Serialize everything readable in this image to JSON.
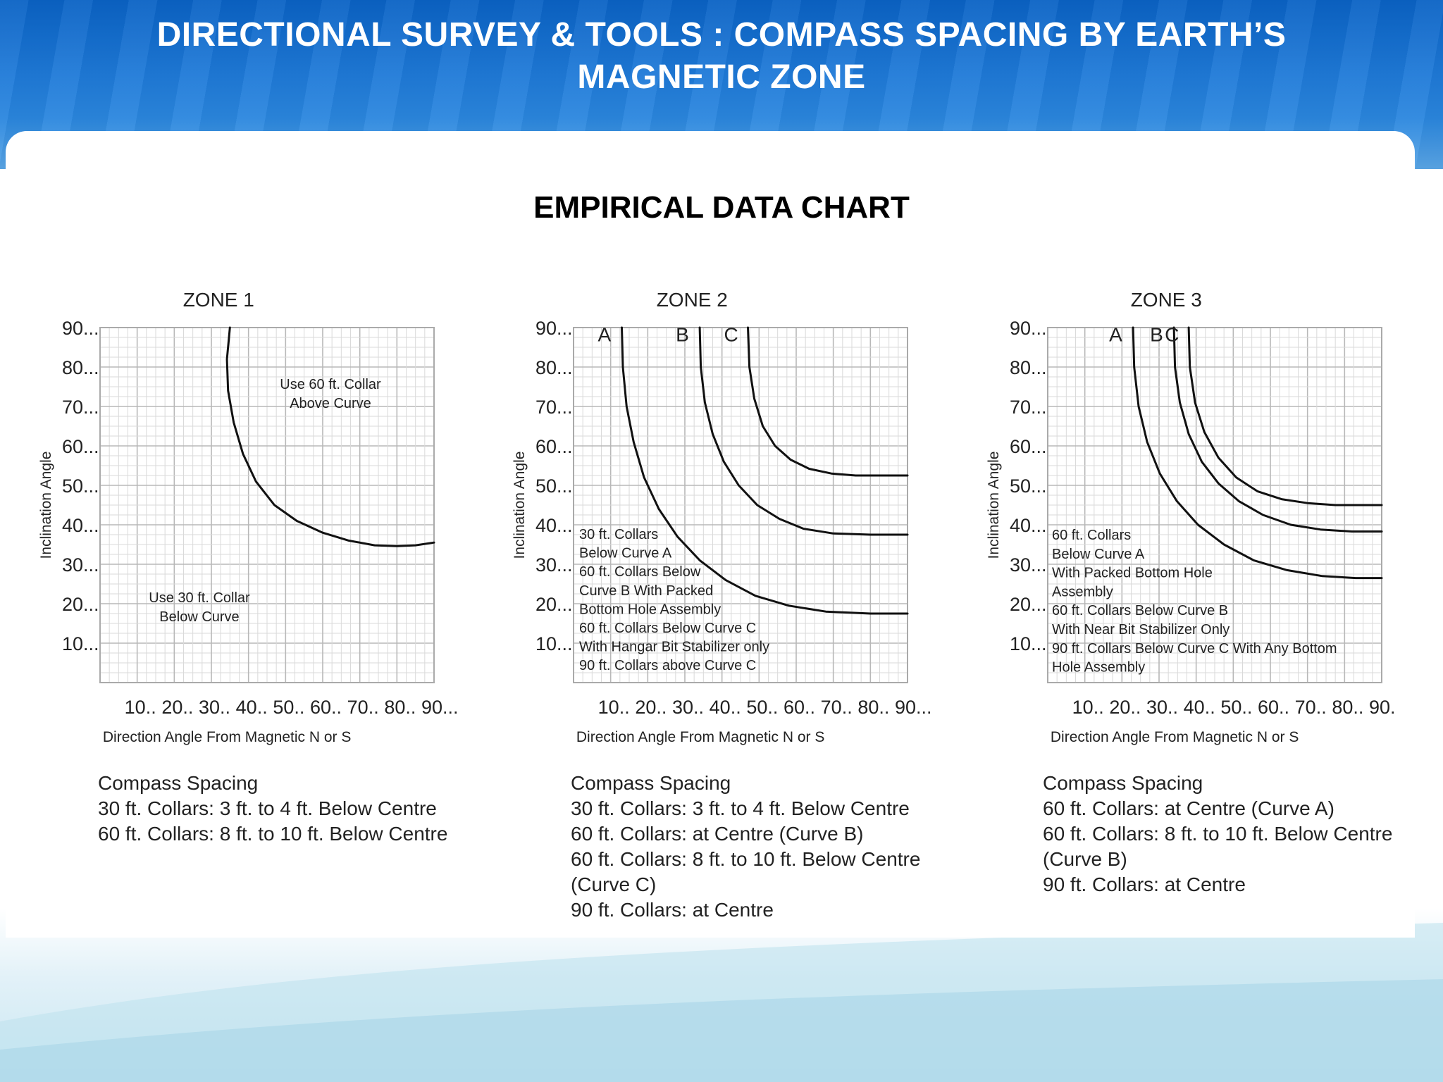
{
  "header": {
    "title_line1": "DIRECTIONAL SURVEY & TOOLS : COMPASS SPACING BY EARTH’S",
    "title_line2": "MAGNETIC ZONE"
  },
  "chart_heading": "EMPIRICAL DATA CHART",
  "chart_data": [
    {
      "type": "line",
      "title": "ZONE 1",
      "xlabel": "Direction Angle From Magnetic N or S",
      "ylabel": "Inclination Angle",
      "xlim": [
        0,
        90
      ],
      "ylim": [
        0,
        90
      ],
      "x_ticks": [
        "10..",
        "20..",
        "30..",
        "40..",
        "50..",
        "60..",
        "70..",
        "80..",
        "90..."
      ],
      "y_ticks": [
        "90...",
        "80...",
        "70...",
        "60...",
        "50...",
        "40...",
        "30...",
        "20...",
        "10..."
      ],
      "grid": true,
      "series": [
        {
          "name": "",
          "label_text": "",
          "x": [
            35,
            34.2,
            34.5,
            36,
            38.5,
            42,
            47,
            53,
            60,
            67,
            74,
            80,
            85,
            90
          ],
          "y": [
            90,
            82,
            74,
            66,
            58,
            51,
            45,
            41,
            38,
            36,
            34.8,
            34.6,
            34.8,
            35.5
          ]
        }
      ],
      "annotations": [
        {
          "lines": [
            "Use 60 ft. Collar",
            "Above Curve"
          ],
          "x": 65,
          "y": 78
        },
        {
          "lines": [
            "Use 30 ft. Collar",
            "Below Curve"
          ],
          "x": 28,
          "y": 20
        }
      ]
    },
    {
      "type": "line",
      "title": "ZONE 2",
      "xlabel": "Direction Angle From Magnetic N or S",
      "ylabel": "Inclination Angle",
      "xlim": [
        0,
        90
      ],
      "ylim": [
        0,
        90
      ],
      "x_ticks": [
        "10..",
        "20..",
        "30..",
        "40..",
        "50..",
        "60..",
        "70..",
        "80..",
        "90..."
      ],
      "y_ticks": [
        "90...",
        "80...",
        "70...",
        "60...",
        "50...",
        "40...",
        "30...",
        "20...",
        "10..."
      ],
      "grid": true,
      "series": [
        {
          "name": "A",
          "label_text": "A",
          "x": [
            13,
            13.3,
            14.3,
            16.2,
            19,
            23,
            28,
            34,
            41,
            49,
            58,
            68,
            80,
            90
          ],
          "y": [
            90,
            80,
            70,
            61,
            52,
            44,
            37,
            31,
            26,
            22,
            19.5,
            18,
            17.5,
            17.5
          ]
        },
        {
          "name": "B",
          "label_text": "B",
          "x": [
            34,
            34.3,
            35.4,
            37.5,
            40.5,
            44.5,
            49.5,
            55.5,
            62,
            70,
            80,
            90
          ],
          "y": [
            90,
            80,
            71,
            63,
            56,
            50,
            45,
            41.5,
            39,
            37.8,
            37.5,
            37.5
          ]
        },
        {
          "name": "C",
          "label_text": "C",
          "x": [
            47,
            47.4,
            48.7,
            51,
            54.3,
            58.5,
            63.5,
            69.5,
            76,
            83,
            90
          ],
          "y": [
            90,
            80,
            72,
            65,
            60,
            56.5,
            54.2,
            53,
            52.5,
            52.5,
            52.5
          ]
        }
      ],
      "annotations": [
        {
          "lines": [
            "30 ft. Collars",
            "Below Curve A",
            "60 ft. Collars Below",
            "Curve B With Packed",
            "Bottom Hole Assembly",
            "60 ft. Collars Below Curve C",
            "With Hangar Bit Stabilizer only",
            "90 ft. Collars above Curve C"
          ],
          "x": 1.5,
          "y": 36
        }
      ]
    },
    {
      "type": "line",
      "title": "ZONE 3",
      "xlabel": "Direction Angle From Magnetic N or S",
      "ylabel": "Inclination Angle",
      "xlim": [
        0,
        90
      ],
      "ylim": [
        0,
        90
      ],
      "x_ticks": [
        "10..",
        "20..",
        "30..",
        "40..",
        "50..",
        "60..",
        "70..",
        "80..",
        "90."
      ],
      "y_ticks": [
        "90...",
        "80...",
        "70...",
        "60...",
        "50...",
        "40...",
        "30...",
        "20...",
        "10..."
      ],
      "grid": true,
      "series": [
        {
          "name": "A",
          "label_text": "A",
          "x": [
            23,
            23.3,
            24.5,
            26.8,
            30.2,
            34.8,
            40.5,
            47.5,
            55.5,
            64.5,
            74,
            83,
            90
          ],
          "y": [
            90,
            80,
            70,
            61,
            53,
            46,
            40,
            35,
            31,
            28.5,
            27,
            26.5,
            26.5
          ]
        },
        {
          "name": "B",
          "label_text": "B",
          "x": [
            34,
            34.3,
            35.6,
            38,
            41.5,
            46,
            51.5,
            58,
            65.5,
            73.5,
            82,
            90
          ],
          "y": [
            90,
            80,
            71,
            63,
            56,
            50.5,
            46,
            42.5,
            40,
            38.8,
            38.3,
            38.3
          ]
        },
        {
          "name": "C",
          "label_text": "C",
          "x": [
            38,
            38.3,
            39.7,
            42.2,
            46,
            50.8,
            56.5,
            63,
            70,
            77.5,
            84,
            90
          ],
          "y": [
            90,
            80,
            71,
            63.5,
            57,
            52,
            48.5,
            46.5,
            45.5,
            45,
            45,
            45
          ]
        }
      ],
      "annotations": [
        {
          "lines": [
            "60 ft. Collars",
            "Below Curve A",
            "With Packed Bottom Hole",
            "Assembly",
            "60 ft. Collars Below  Curve B",
            "With Near Bit Stabilizer Only",
            "90 ft. Collars Below Curve C  With Any Bottom",
            "Hole Assembly"
          ],
          "x": 1.5,
          "y": 36
        }
      ]
    }
  ],
  "compass_spacing": [
    {
      "title": "Compass Spacing",
      "lines": [
        "30 ft. Collars: 3 ft. to 4 ft. Below Centre",
        "60 ft. Collars: 8 ft. to 10 ft. Below Centre"
      ]
    },
    {
      "title": "Compass Spacing",
      "lines": [
        "30 ft. Collars: 3 ft. to 4 ft. Below Centre",
        "60 ft. Collars: at Centre (Curve B)",
        "60 ft. Collars: 8 ft. to 10 ft. Below Centre",
        "(Curve C)",
        "90 ft. Collars: at Centre"
      ]
    },
    {
      "title": "Compass Spacing",
      "lines": [
        "60 ft. Collars: at Centre (Curve A)",
        "60 ft. Collars: 8 ft. to 10 ft. Below Centre",
        "(Curve B)",
        "90 ft. Collars: at Centre"
      ]
    }
  ]
}
